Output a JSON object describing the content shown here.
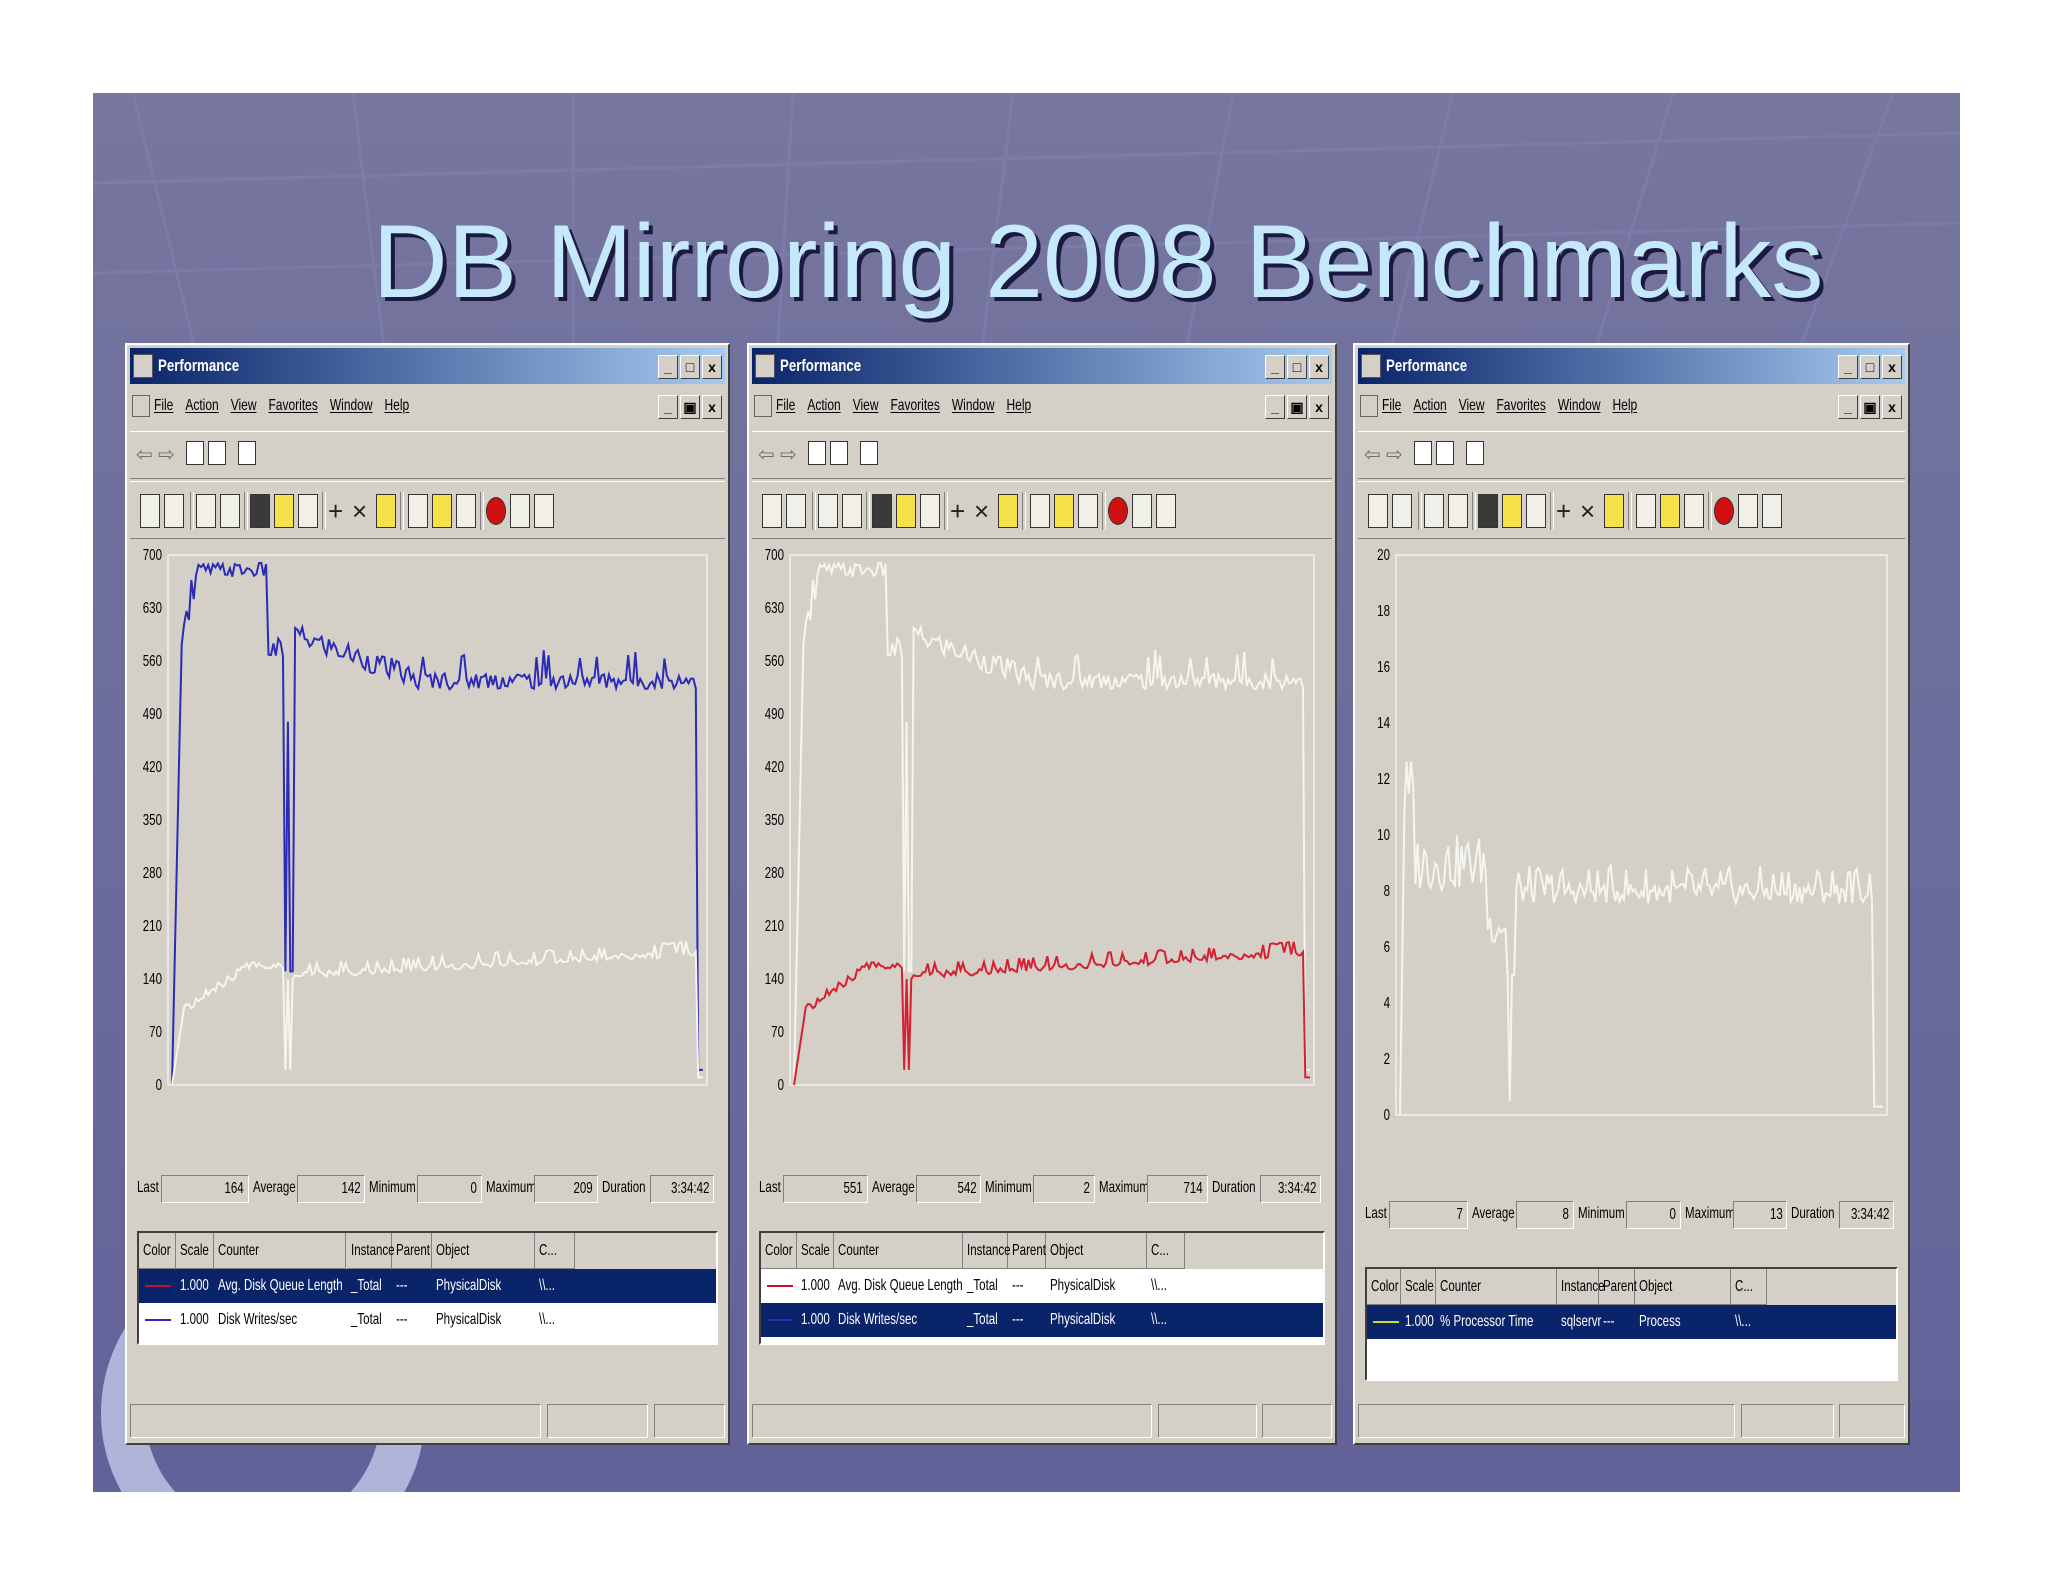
{
  "slide": {
    "title": "DB Mirroring 2008  Benchmarks",
    "background_color": "#6a6a9e",
    "title_color": "#c6e8fb"
  },
  "windows": [
    {
      "title": "Performance",
      "menu": [
        "File",
        "Action",
        "View",
        "Favorites",
        "Window",
        "Help"
      ],
      "yaxis": {
        "max": 700,
        "ticks": [
          "700",
          "630",
          "560",
          "490",
          "420",
          "350",
          "280",
          "210",
          "140",
          "70",
          "0"
        ]
      },
      "stats": {
        "last_label": "Last",
        "last": "164",
        "average_label": "Average",
        "average": "142",
        "minimum_label": "Minimum",
        "minimum": "0",
        "maximum_label": "Maximum",
        "maximum": "209",
        "duration_label": "Duration",
        "duration": "3:34:42"
      },
      "legend_headers": [
        "Color",
        "Scale",
        "Counter",
        "Instance",
        "Parent",
        "Object",
        "C..."
      ],
      "legend_rows": [
        {
          "color": "#c8102e",
          "scale": "1.000",
          "counter": "Avg. Disk Queue Length",
          "instance": "_Total",
          "parent": "---",
          "object": "PhysicalDisk",
          "computer": "\\\\...",
          "selected": true
        },
        {
          "color": "#2b2bb8",
          "scale": "1.000",
          "counter": "Disk Writes/sec",
          "instance": "_Total",
          "parent": "---",
          "object": "PhysicalDisk",
          "computer": "\\\\...",
          "selected": false
        }
      ],
      "series": [
        {
          "name": "Disk Writes/sec",
          "color": "#2b2bb8",
          "profile": "writes"
        },
        {
          "name": "Avg. Disk Queue Length",
          "color": "#f5f5f0",
          "profile": "queue"
        }
      ]
    },
    {
      "title": "Performance",
      "menu": [
        "File",
        "Action",
        "View",
        "Favorites",
        "Window",
        "Help"
      ],
      "yaxis": {
        "max": 700,
        "ticks": [
          "700",
          "630",
          "560",
          "490",
          "420",
          "350",
          "280",
          "210",
          "140",
          "70",
          "0"
        ]
      },
      "stats": {
        "last_label": "Last",
        "last": "551",
        "average_label": "Average",
        "average": "542",
        "minimum_label": "Minimum",
        "minimum": "2",
        "maximum_label": "Maximum",
        "maximum": "714",
        "duration_label": "Duration",
        "duration": "3:34:42"
      },
      "legend_headers": [
        "Color",
        "Scale",
        "Counter",
        "Instance",
        "Parent",
        "Object",
        "C..."
      ],
      "legend_rows": [
        {
          "color": "#c8102e",
          "scale": "1.000",
          "counter": "Avg. Disk Queue Length",
          "instance": "_Total",
          "parent": "---",
          "object": "PhysicalDisk",
          "computer": "\\\\...",
          "selected": false
        },
        {
          "color": "#2b2bb8",
          "scale": "1.000",
          "counter": "Disk Writes/sec",
          "instance": "_Total",
          "parent": "---",
          "object": "PhysicalDisk",
          "computer": "\\\\...",
          "selected": true
        }
      ],
      "series": [
        {
          "name": "Disk Writes/sec",
          "color": "#f5f5f0",
          "profile": "writes"
        },
        {
          "name": "Avg. Disk Queue Length",
          "color": "#d42030",
          "profile": "queue"
        }
      ]
    },
    {
      "title": "Performance",
      "menu": [
        "File",
        "Action",
        "View",
        "Favorites",
        "Window",
        "Help"
      ],
      "yaxis": {
        "max": 20,
        "ticks": [
          "20",
          "18",
          "16",
          "14",
          "12",
          "10",
          "8",
          "6",
          "4",
          "2",
          "0"
        ]
      },
      "stats": {
        "last_label": "Last",
        "last": "7",
        "average_label": "Average",
        "average": "8",
        "minimum_label": "Minimum",
        "minimum": "0",
        "maximum_label": "Maximum",
        "maximum": "13",
        "duration_label": "Duration",
        "duration": "3:34:42"
      },
      "legend_headers": [
        "Color",
        "Scale",
        "Counter",
        "Instance",
        "Parent",
        "Object",
        "C..."
      ],
      "legend_rows": [
        {
          "color": "#c8e020",
          "scale": "1.000",
          "counter": "% Processor Time",
          "instance": "sqlservr",
          "parent": "---",
          "object": "Process",
          "computer": "\\\\...",
          "selected": true
        }
      ],
      "series": [
        {
          "name": "% Processor Time",
          "color": "#f5f5f0",
          "profile": "cpu"
        }
      ]
    }
  ]
}
